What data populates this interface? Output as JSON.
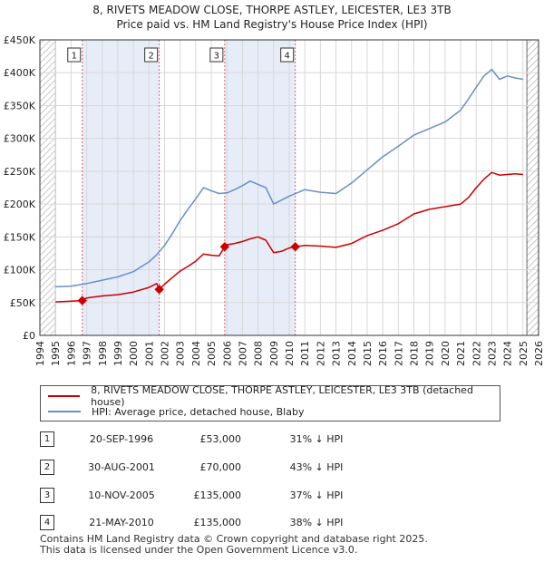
{
  "header": {
    "title_line1": "8, RIVETS MEADOW CLOSE, THORPE ASTLEY, LEICESTER, LE3 3TB",
    "title_line2": "Price paid vs. HM Land Registry's House Price Index (HPI)"
  },
  "legend": {
    "property_label": "8, RIVETS MEADOW CLOSE, THORPE ASTLEY, LEICESTER, LE3 3TB (detached house)",
    "hpi_label": "HPI: Average price, detached house, Blaby"
  },
  "transactions": [
    {
      "num": "1",
      "date": "20-SEP-1996",
      "price": "£53,000",
      "hpi": "31% ↓ HPI"
    },
    {
      "num": "2",
      "date": "30-AUG-2001",
      "price": "£70,000",
      "hpi": "43% ↓ HPI"
    },
    {
      "num": "3",
      "date": "10-NOV-2005",
      "price": "£135,000",
      "hpi": "37% ↓ HPI"
    },
    {
      "num": "4",
      "date": "21-MAY-2010",
      "price": "£135,000",
      "hpi": "38% ↓ HPI"
    }
  ],
  "footer": {
    "line1": "Contains HM Land Registry data © Crown copyright and database right 2025.",
    "line2": "This data is licensed under the Open Government Licence v3.0."
  },
  "chart_data": {
    "type": "line",
    "xlim": [
      1994.0,
      2026.0
    ],
    "ylim": [
      0,
      450000
    ],
    "y_ticks": [
      0,
      50000,
      100000,
      150000,
      200000,
      250000,
      300000,
      350000,
      400000,
      450000
    ],
    "y_tick_labels": [
      "£0",
      "£50K",
      "£100K",
      "£150K",
      "£200K",
      "£250K",
      "£300K",
      "£350K",
      "£400K",
      "£450K"
    ],
    "x_ticks": [
      1994,
      1995,
      1996,
      1997,
      1998,
      1999,
      2000,
      2001,
      2002,
      2003,
      2004,
      2005,
      2006,
      2007,
      2008,
      2009,
      2010,
      2011,
      2012,
      2013,
      2014,
      2015,
      2016,
      2017,
      2018,
      2019,
      2020,
      2021,
      2022,
      2023,
      2024,
      2025,
      2026
    ],
    "x_tick_labels": [
      "1994",
      "1995",
      "1996",
      "1997",
      "1998",
      "1999",
      "2000",
      "2001",
      "2002",
      "2003",
      "2004",
      "2005",
      "2006",
      "2007",
      "2008",
      "2009",
      "2010",
      "2011",
      "2012",
      "2013",
      "2014",
      "2015",
      "2016",
      "2017",
      "2018",
      "2019",
      "2020",
      "2021",
      "2022",
      "2023",
      "2024",
      "2025",
      "2026"
    ],
    "data_start": 1995.0,
    "data_end": 2025.25,
    "shaded_spans": [
      [
        1996.72,
        2001.66
      ],
      [
        2005.86,
        2010.39
      ]
    ],
    "series": [
      {
        "name": "8, RIVETS MEADOW CLOSE, THORPE ASTLEY, LEICESTER, LE3 3TB (detached house)",
        "color": "#cc0000",
        "x": [
          1995.0,
          1996.0,
          1996.72,
          1997.0,
          1998.0,
          1999.0,
          2000.0,
          2001.0,
          2001.5,
          2001.66,
          2002.0,
          2002.5,
          2003.0,
          2003.5,
          2004.0,
          2004.5,
          2005.0,
          2005.5,
          2005.86,
          2006.0,
          2006.5,
          2007.0,
          2007.5,
          2008.0,
          2008.5,
          2009.0,
          2009.5,
          2010.0,
          2010.39,
          2011.0,
          2012.0,
          2013.0,
          2014.0,
          2015.0,
          2016.0,
          2017.0,
          2018.0,
          2019.0,
          2020.0,
          2021.0,
          2021.5,
          2022.0,
          2022.5,
          2023.0,
          2023.5,
          2024.0,
          2024.5,
          2025.0
        ],
        "values": [
          51000,
          52000,
          53000,
          57000,
          60000,
          62000,
          66000,
          73000,
          79000,
          70000,
          78000,
          88000,
          98000,
          105000,
          113000,
          124000,
          122000,
          121000,
          135000,
          138000,
          140000,
          143000,
          147000,
          150000,
          145000,
          126000,
          128000,
          133000,
          135000,
          137000,
          136000,
          134000,
          140000,
          152000,
          160000,
          170000,
          185000,
          192000,
          196000,
          200000,
          210000,
          225000,
          238000,
          248000,
          244000,
          245000,
          246000,
          245000
        ]
      },
      {
        "name": "HPI: Average price, detached house, Blaby",
        "color": "#6a8fc7",
        "x": [
          1995.0,
          1996.0,
          1997.0,
          1998.0,
          1999.0,
          2000.0,
          2001.0,
          2001.5,
          2002.0,
          2002.5,
          2003.0,
          2003.5,
          2004.0,
          2004.5,
          2005.0,
          2005.5,
          2006.0,
          2006.5,
          2007.0,
          2007.5,
          2008.0,
          2008.5,
          2009.0,
          2009.5,
          2010.0,
          2010.5,
          2011.0,
          2012.0,
          2013.0,
          2014.0,
          2015.0,
          2016.0,
          2017.0,
          2018.0,
          2019.0,
          2020.0,
          2021.0,
          2021.5,
          2022.0,
          2022.5,
          2023.0,
          2023.5,
          2024.0,
          2024.5,
          2025.0
        ],
        "values": [
          74000,
          75000,
          79000,
          84000,
          89000,
          97000,
          112000,
          123000,
          137000,
          155000,
          175000,
          192000,
          208000,
          225000,
          220000,
          216000,
          217000,
          222000,
          228000,
          235000,
          230000,
          225000,
          200000,
          206000,
          212000,
          217000,
          222000,
          218000,
          216000,
          232000,
          252000,
          272000,
          288000,
          305000,
          315000,
          325000,
          343000,
          360000,
          378000,
          395000,
          405000,
          390000,
          395000,
          392000,
          390000
        ]
      }
    ],
    "markers": [
      {
        "label": "1",
        "x": 1996.72,
        "value": 53000
      },
      {
        "label": "2",
        "x": 2001.66,
        "value": 70000
      },
      {
        "label": "3",
        "x": 2005.86,
        "value": 135000
      },
      {
        "label": "4",
        "x": 2010.39,
        "value": 135000
      }
    ]
  }
}
